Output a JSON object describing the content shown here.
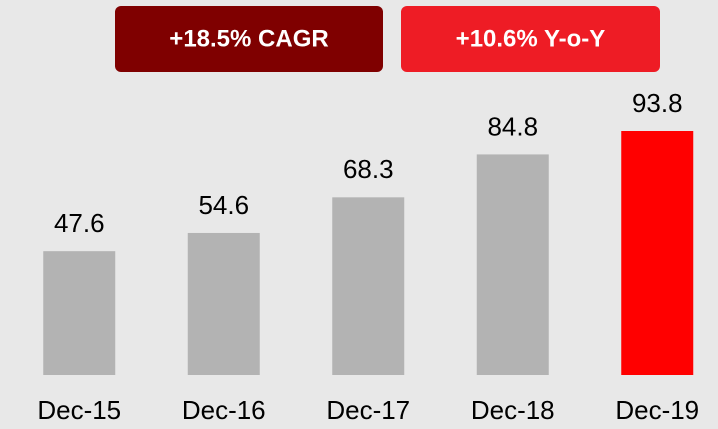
{
  "chart_data": {
    "type": "bar",
    "categories": [
      "Dec-15",
      "Dec-16",
      "Dec-17",
      "Dec-18",
      "Dec-19"
    ],
    "values": [
      47.6,
      54.6,
      68.3,
      84.8,
      93.8
    ],
    "colors": [
      "#b3b3b3",
      "#b3b3b3",
      "#b3b3b3",
      "#b3b3b3",
      "#ff0000"
    ],
    "annotations": [
      {
        "text": "+18.5% CAGR",
        "color": "#7f0000"
      },
      {
        "text": "+10.6% Y-o-Y",
        "color": "#ee1c25"
      }
    ]
  }
}
